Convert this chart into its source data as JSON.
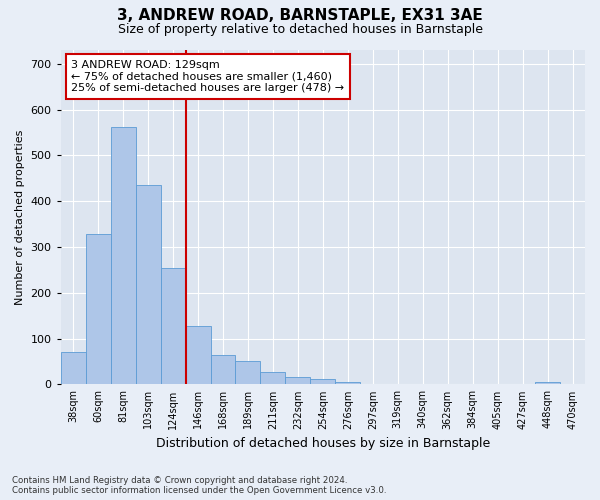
{
  "title": "3, ANDREW ROAD, BARNSTAPLE, EX31 3AE",
  "subtitle": "Size of property relative to detached houses in Barnstaple",
  "xlabel": "Distribution of detached houses by size in Barnstaple",
  "ylabel": "Number of detached properties",
  "categories": [
    "38sqm",
    "60sqm",
    "81sqm",
    "103sqm",
    "124sqm",
    "146sqm",
    "168sqm",
    "189sqm",
    "211sqm",
    "232sqm",
    "254sqm",
    "276sqm",
    "297sqm",
    "319sqm",
    "340sqm",
    "362sqm",
    "384sqm",
    "405sqm",
    "427sqm",
    "448sqm",
    "470sqm"
  ],
  "values": [
    70,
    328,
    562,
    436,
    255,
    128,
    65,
    52,
    28,
    16,
    11,
    5,
    2,
    2,
    1,
    0,
    0,
    0,
    0,
    5,
    0
  ],
  "bar_color": "#aec6e8",
  "bar_edgecolor": "#5b9bd5",
  "vline_x": 4.5,
  "vline_color": "#cc0000",
  "annotation_text": "3 ANDREW ROAD: 129sqm\n← 75% of detached houses are smaller (1,460)\n25% of semi-detached houses are larger (478) →",
  "annotation_box_color": "#ffffff",
  "annotation_box_edgecolor": "#cc0000",
  "ylim": [
    0,
    730
  ],
  "yticks": [
    0,
    100,
    200,
    300,
    400,
    500,
    600,
    700
  ],
  "footnote": "Contains HM Land Registry data © Crown copyright and database right 2024.\nContains public sector information licensed under the Open Government Licence v3.0.",
  "background_color": "#e8eef7",
  "plot_background_color": "#dde5f0"
}
